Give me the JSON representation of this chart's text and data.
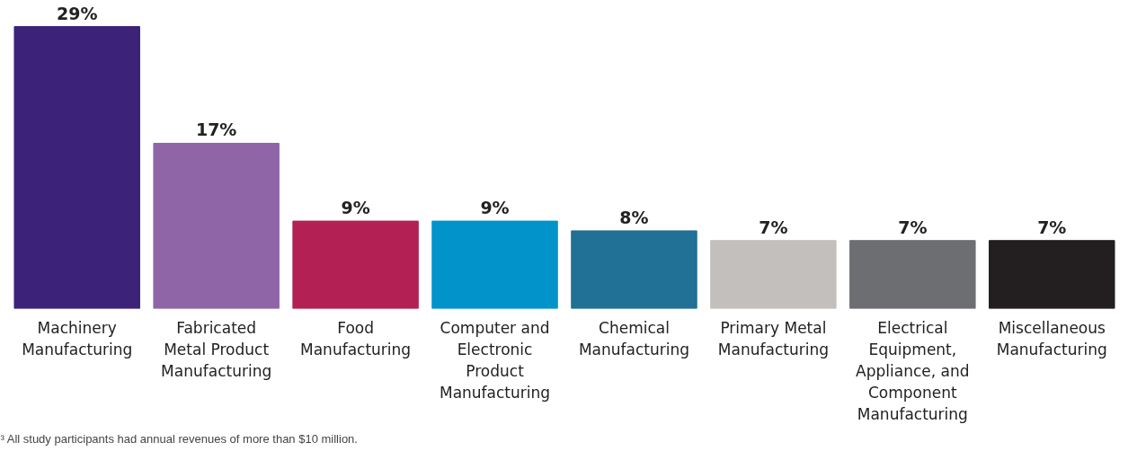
{
  "chart_data": {
    "type": "bar",
    "categories": [
      "Machinery Manufacturing",
      "Fabricated Metal Product Manufacturing",
      "Food Manufacturing",
      "Computer and Electronic Product Manufacturing",
      "Chemical Manufacturing",
      "Primary Metal Manufacturing",
      "Electrical Equipment, Appliance, and Component Manufacturing",
      "Miscellaneous Manufacturing"
    ],
    "values": [
      29,
      17,
      9,
      9,
      8,
      7,
      7,
      7
    ],
    "colors": [
      "#3c2279",
      "#9065a8",
      "#b32154",
      "#0393cb",
      "#217095",
      "#c3bfbc",
      "#6d6e71",
      "#231f20"
    ],
    "value_labels": [
      "29%",
      "17%",
      "9%",
      "9%",
      "8%",
      "7%",
      "7%",
      "7%"
    ],
    "grid": false,
    "annotations": [
      "³ All study participants had annual revenues of more than $10 million."
    ]
  }
}
